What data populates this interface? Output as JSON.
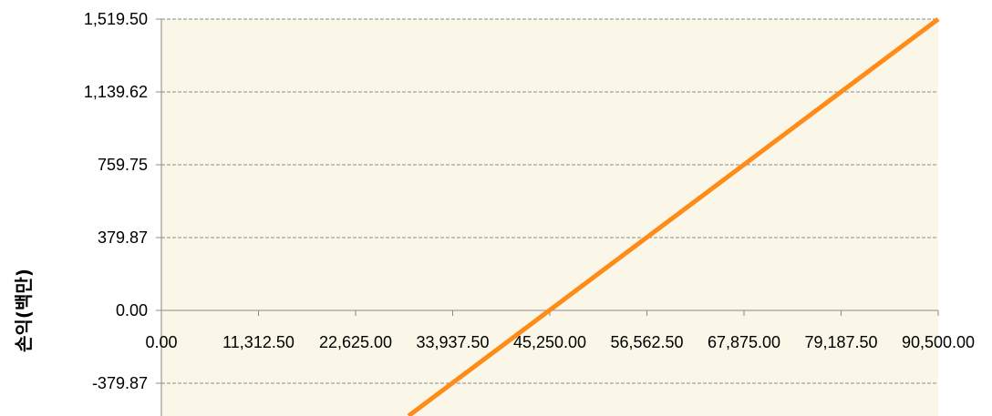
{
  "chart_data": {
    "type": "line",
    "title": "",
    "xlabel": "",
    "ylabel": "손익(백만)",
    "x_ticks": [
      0,
      11312.5,
      22625,
      33937.5,
      45250,
      56562.5,
      67875,
      79187.5,
      90500
    ],
    "x_tick_labels": [
      "0.00",
      "11,312.50",
      "22,625.00",
      "33,937.50",
      "45,250.00",
      "56,562.50",
      "67,875.00",
      "79,187.50",
      "90,500.00"
    ],
    "y_ticks": [
      -379.87,
      0,
      379.87,
      759.75,
      1139.62,
      1519.5
    ],
    "y_tick_labels": [
      "-379.87",
      "0.00",
      "379.87",
      "759.75",
      "1,139.62",
      "1,519.50"
    ],
    "xlim": [
      0,
      90500
    ],
    "ylim": [
      -550,
      1519.5
    ],
    "grid": true,
    "plot_background": "#FBF7E8",
    "series": [
      {
        "color": "#FF8C19",
        "x": [
          28800,
          90500
        ],
        "y": [
          -550,
          1519.5
        ]
      }
    ]
  }
}
